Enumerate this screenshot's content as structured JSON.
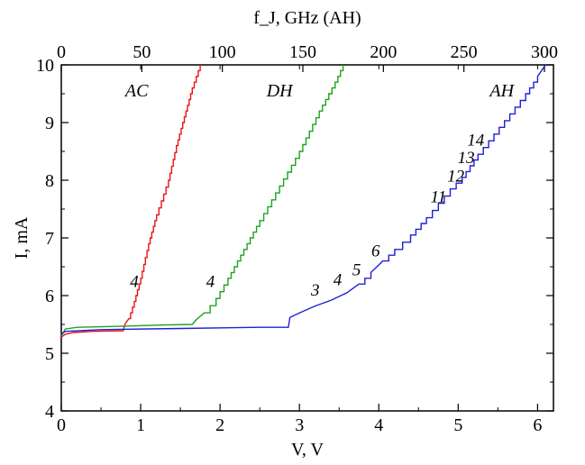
{
  "chart_data": {
    "type": "line",
    "xlabel": "V, V",
    "ylabel": "I, mA",
    "top_xlabel": "f_J, GHz (AH)",
    "xlim": [
      0,
      6.2
    ],
    "ylim": [
      4,
      10
    ],
    "top_xlim": [
      0,
      300
    ],
    "xticks": [
      "0",
      "1",
      "2",
      "3",
      "4",
      "5",
      "6"
    ],
    "yticks": [
      "4",
      "5",
      "6",
      "7",
      "8",
      "9",
      "10"
    ],
    "top_xticks": [
      "0",
      "50",
      "100",
      "150",
      "200",
      "250",
      "300"
    ],
    "grid": false,
    "series": [
      {
        "name": "AC",
        "color": "#e8121a",
        "points": [
          [
            0.0,
            5.28
          ],
          [
            0.05,
            5.33
          ],
          [
            0.15,
            5.36
          ],
          [
            0.4,
            5.38
          ],
          [
            0.78,
            5.39
          ],
          [
            0.8,
            5.5
          ],
          [
            0.85,
            5.6
          ],
          [
            0.92,
            5.9
          ],
          [
            1.0,
            6.3
          ],
          [
            1.1,
            6.9
          ],
          [
            1.2,
            7.4
          ],
          [
            1.35,
            8.0
          ],
          [
            1.45,
            8.6
          ],
          [
            1.55,
            9.1
          ],
          [
            1.65,
            9.6
          ],
          [
            1.75,
            10.0
          ]
        ]
      },
      {
        "name": "DH",
        "color": "#1ca31e",
        "points": [
          [
            0.0,
            5.3
          ],
          [
            0.05,
            5.42
          ],
          [
            0.2,
            5.45
          ],
          [
            0.8,
            5.47
          ],
          [
            1.3,
            5.49
          ],
          [
            1.65,
            5.5
          ],
          [
            1.7,
            5.58
          ],
          [
            1.8,
            5.7
          ],
          [
            1.95,
            5.95
          ],
          [
            2.1,
            6.3
          ],
          [
            2.3,
            6.8
          ],
          [
            2.5,
            7.3
          ],
          [
            2.75,
            7.9
          ],
          [
            3.0,
            8.5
          ],
          [
            3.25,
            9.2
          ],
          [
            3.45,
            9.7
          ],
          [
            3.55,
            10.0
          ]
        ]
      },
      {
        "name": "AH",
        "color": "#1f1fd6",
        "points": [
          [
            0.0,
            5.33
          ],
          [
            0.05,
            5.38
          ],
          [
            0.5,
            5.41
          ],
          [
            1.5,
            5.43
          ],
          [
            2.5,
            5.45
          ],
          [
            2.86,
            5.45
          ],
          [
            2.88,
            5.62
          ],
          [
            3.0,
            5.7
          ],
          [
            3.2,
            5.82
          ],
          [
            3.4,
            5.92
          ],
          [
            3.6,
            6.05
          ],
          [
            3.75,
            6.2
          ],
          [
            3.9,
            6.4
          ],
          [
            4.05,
            6.6
          ],
          [
            4.2,
            6.8
          ],
          [
            4.4,
            7.05
          ],
          [
            4.6,
            7.35
          ],
          [
            4.75,
            7.6
          ],
          [
            4.9,
            7.85
          ],
          [
            5.05,
            8.05
          ],
          [
            5.25,
            8.45
          ],
          [
            5.45,
            8.8
          ],
          [
            5.65,
            9.15
          ],
          [
            5.85,
            9.5
          ],
          [
            6.0,
            9.8
          ],
          [
            6.1,
            10.0
          ]
        ]
      }
    ],
    "series_labels": [
      {
        "text": "AC",
        "x": 0.95,
        "y": 9.45
      },
      {
        "text": "DH",
        "x": 2.75,
        "y": 9.45
      },
      {
        "text": "AH",
        "x": 5.55,
        "y": 9.45
      }
    ],
    "step_labels": [
      {
        "text": "4",
        "x": 0.92,
        "y": 6.15
      },
      {
        "text": "4",
        "x": 1.88,
        "y": 6.15
      },
      {
        "text": "3",
        "x": 3.2,
        "y": 6.0
      },
      {
        "text": "4",
        "x": 3.48,
        "y": 6.18
      },
      {
        "text": "5",
        "x": 3.72,
        "y": 6.35
      },
      {
        "text": "6",
        "x": 3.96,
        "y": 6.68
      },
      {
        "text": "11",
        "x": 4.75,
        "y": 7.62
      },
      {
        "text": "12",
        "x": 4.97,
        "y": 7.98
      },
      {
        "text": "13",
        "x": 5.1,
        "y": 8.3
      },
      {
        "text": "14",
        "x": 5.22,
        "y": 8.6
      }
    ]
  }
}
